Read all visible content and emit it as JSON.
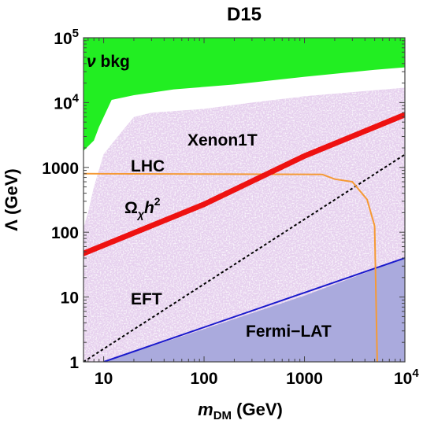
{
  "chart_data": {
    "type": "line",
    "title": "D15",
    "xscale": "log",
    "yscale": "log",
    "xlim": [
      6.3,
      10000
    ],
    "ylim": [
      1,
      100000
    ],
    "grid": false,
    "xlabel": {
      "symbol": "m",
      "sub": "DM",
      "unit": " (GeV)"
    },
    "ylabel": "Λ (GeV)",
    "xticks": [
      {
        "value": 10,
        "label": "10"
      },
      {
        "value": 100,
        "label": "100"
      },
      {
        "value": 1000,
        "label": "1000"
      },
      {
        "value": 10000,
        "label": "10",
        "sup": "4"
      }
    ],
    "yticks": [
      {
        "value": 1,
        "label": "1"
      },
      {
        "value": 10,
        "label": "10"
      },
      {
        "value": 100,
        "label": "100"
      },
      {
        "value": 1000,
        "label": "1000"
      },
      {
        "value": 10000,
        "label": "10",
        "sup": "4"
      },
      {
        "value": 100000,
        "label": "10",
        "sup": "5"
      }
    ],
    "colors": {
      "nu_bkg": "#22ee22",
      "xenon": "#e6d0ee",
      "fermi": "#aaaadd",
      "fermi_line": "#1a1acc",
      "lhc": "#f59a35",
      "relic": "#ee1111",
      "eft": "#000000"
    },
    "regions": {
      "nu_bkg": {
        "upper": [
          [
            6.3,
            100000
          ],
          [
            10000,
            100000
          ]
        ],
        "lower": [
          [
            6.3,
            1800
          ],
          [
            8,
            2600
          ],
          [
            9,
            4200
          ],
          [
            12,
            11000
          ],
          [
            20,
            13000
          ],
          [
            50,
            16000
          ],
          [
            200,
            19000
          ],
          [
            1000,
            25000
          ],
          [
            5000,
            32000
          ],
          [
            10000,
            35000
          ]
        ]
      },
      "xenon": {
        "upper": [
          [
            6.3,
            120
          ],
          [
            7,
            200
          ],
          [
            8,
            500
          ],
          [
            10,
            1600
          ],
          [
            15,
            3500
          ],
          [
            20,
            6000
          ],
          [
            30,
            7000
          ],
          [
            100,
            8000
          ],
          [
            300,
            10000
          ],
          [
            1000,
            12500
          ],
          [
            5000,
            15500
          ],
          [
            10000,
            17000
          ]
        ],
        "lower": [
          [
            6.3,
            1
          ],
          [
            10000,
            1
          ]
        ]
      },
      "fermi": {
        "upper": [
          [
            10,
            1
          ],
          [
            100,
            3.2
          ],
          [
            1000,
            10.5
          ],
          [
            10000,
            40
          ]
        ],
        "lower": [
          [
            10,
            1
          ],
          [
            10000,
            1
          ]
        ]
      }
    },
    "series": [
      {
        "key": "relic",
        "points": [
          [
            6.3,
            47
          ],
          [
            100,
            270
          ],
          [
            1000,
            1500
          ],
          [
            10000,
            6500
          ]
        ]
      },
      {
        "key": "lhc",
        "points": [
          [
            6.3,
            800
          ],
          [
            1500,
            780
          ],
          [
            2000,
            660
          ],
          [
            3000,
            600
          ],
          [
            4200,
            320
          ],
          [
            5000,
            125
          ],
          [
            5300,
            1
          ]
        ]
      },
      {
        "key": "eft",
        "points": [
          [
            6.3,
            1
          ],
          [
            10000,
            1580
          ]
        ]
      },
      {
        "key": "fermi_line",
        "points": [
          [
            10,
            1
          ],
          [
            10000,
            40
          ]
        ]
      }
    ],
    "annotations": [
      {
        "key": "nu_bkg",
        "symbol": "ν",
        "text": " bkg"
      },
      {
        "key": "xenon",
        "text": "Xenon1T"
      },
      {
        "key": "lhc",
        "text": "LHC"
      },
      {
        "key": "relic",
        "symbol": "Ω",
        "sub": "χ",
        "text": "h",
        "sup": "2"
      },
      {
        "key": "eft",
        "text": "EFT"
      },
      {
        "key": "fermi",
        "text": "Fermi−LAT"
      }
    ]
  }
}
